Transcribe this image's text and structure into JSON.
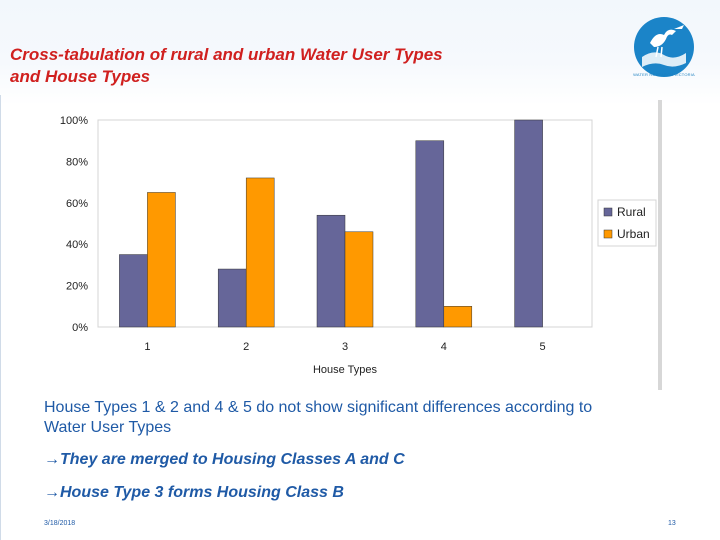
{
  "slide": {
    "title_line1": "Cross-tabulation of rural and urban Water User Types",
    "title_line2": "and House Types",
    "body_line1": "House Types 1 & 2 and 4 & 5 do not show significant differences according to",
    "body_line2": "Water User Types",
    "bullet1": "They are merged to Housing Classes A and C",
    "bullet2": "House Type 3 forms Housing Class B",
    "arrow_glyph": "→",
    "date": "3/18/2018",
    "page_number": "13",
    "logo_text": "WATER RESEARCH VICTORIA",
    "logo_icon": "bird-logo-icon"
  },
  "colors": {
    "title": "#d0201f",
    "text": "#1f5aa6",
    "rural": "#666699",
    "urban": "#ff9900"
  },
  "chart_data": {
    "type": "bar",
    "categories": [
      "1",
      "2",
      "3",
      "4",
      "5"
    ],
    "series": [
      {
        "name": "Rural",
        "values": [
          35,
          28,
          54,
          90,
          100
        ],
        "color": "#666699"
      },
      {
        "name": "Urban",
        "values": [
          65,
          72,
          46,
          10,
          0
        ],
        "color": "#ff9900"
      }
    ],
    "title": "",
    "xlabel": "House Types",
    "ylabel": "",
    "ylim": [
      0,
      100
    ],
    "y_ticks": [
      "0%",
      "20%",
      "40%",
      "60%",
      "80%",
      "100%"
    ],
    "grid": false,
    "legend_position": "right"
  }
}
